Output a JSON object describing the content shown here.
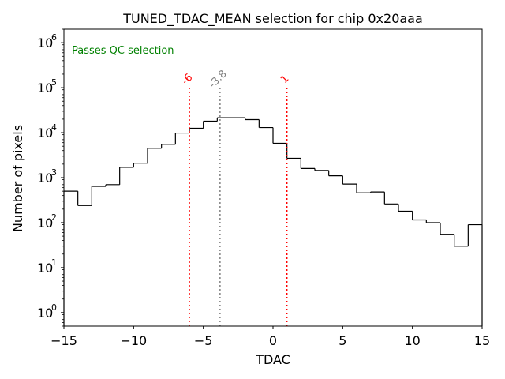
{
  "chart_data": {
    "type": "histogram",
    "title": "TUNED_TDAC_MEAN selection for chip 0x20aaa",
    "xlabel": "TDAC",
    "ylabel": "Number of pixels",
    "xlim": [
      -15,
      15
    ],
    "ylim": [
      0.5,
      2000000
    ],
    "yscale": "log",
    "x_ticks": [
      -15,
      -10,
      -5,
      0,
      5,
      10,
      15
    ],
    "x_tick_labels": [
      "−15",
      "−10",
      "−5",
      "0",
      "5",
      "10",
      "15"
    ],
    "y_ticks": [
      1,
      10,
      100,
      1000,
      10000,
      100000,
      1000000
    ],
    "y_tick_exponents": [
      "0",
      "1",
      "2",
      "3",
      "4",
      "5",
      "6"
    ],
    "bin_edges": [
      -15,
      -14,
      -13,
      -12,
      -11,
      -10,
      -9,
      -8,
      -7,
      -6,
      -5,
      -4,
      -3,
      -2,
      -1,
      0,
      1,
      2,
      3,
      4,
      5,
      6,
      7,
      8,
      9,
      10,
      11,
      12,
      13,
      14,
      15
    ],
    "counts": [
      500,
      240,
      640,
      700,
      1700,
      2100,
      4500,
      5500,
      9800,
      12500,
      18000,
      21500,
      21500,
      19500,
      13000,
      5800,
      2700,
      1600,
      1450,
      1100,
      720,
      460,
      480,
      260,
      180,
      115,
      100,
      55,
      30,
      90
    ],
    "annotation": "Passes QC selection",
    "annotation_color": "#008000",
    "cut_lines": [
      {
        "x": -6,
        "label": "-6",
        "color": "#ff0000"
      },
      {
        "x": 1,
        "label": "1",
        "color": "#ff0000"
      }
    ],
    "mean_line": {
      "x": -3.8,
      "label": "-3.8",
      "color": "#808080"
    }
  }
}
